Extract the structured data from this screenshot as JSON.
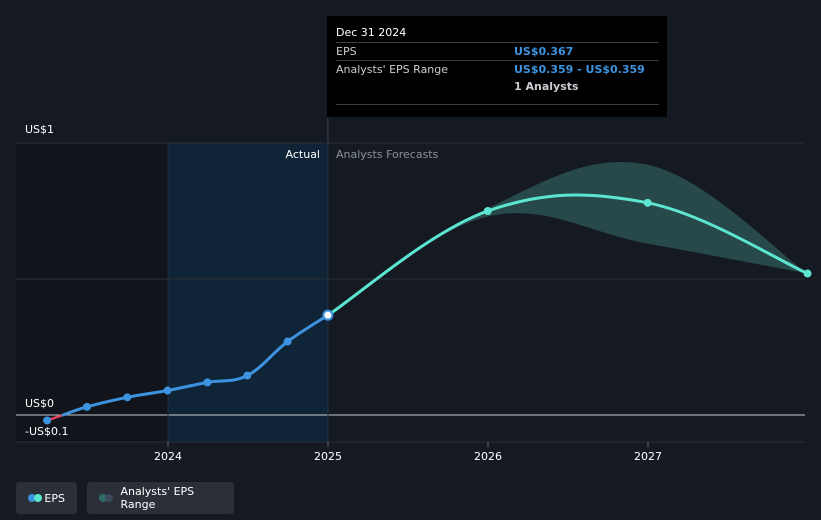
{
  "chart_data": {
    "type": "line",
    "x_ticks": [
      "2024",
      "2025",
      "2026",
      "2027"
    ],
    "y_ticks": [
      "US$1",
      "US$0",
      "-US$0.1"
    ],
    "sections": {
      "actual": "Actual",
      "forecast": "Analysts Forecasts"
    },
    "series": [
      {
        "name": "EPS",
        "kind": "actual",
        "points": [
          {
            "x": "2023-03-31",
            "y": -0.02
          },
          {
            "x": "2023-06-30",
            "y": 0.03
          },
          {
            "x": "2023-09-30",
            "y": 0.065
          },
          {
            "x": "2023-12-31",
            "y": 0.09
          },
          {
            "x": "2024-03-31",
            "y": 0.12
          },
          {
            "x": "2024-06-30",
            "y": 0.145
          },
          {
            "x": "2024-09-30",
            "y": 0.27
          },
          {
            "x": "2024-12-31",
            "y": 0.367
          }
        ]
      },
      {
        "name": "EPS",
        "kind": "forecast",
        "points": [
          {
            "x": "2024-12-31",
            "y": 0.367
          },
          {
            "x": "2025-12-31",
            "y": 0.75
          },
          {
            "x": "2026-12-31",
            "y": 0.78
          },
          {
            "x": "2027-12-31",
            "y": 0.52
          }
        ]
      },
      {
        "name": "Analysts' EPS Range",
        "kind": "range",
        "points": [
          {
            "x": "2024-12-31",
            "low": 0.359,
            "high": 0.359
          },
          {
            "x": "2025-12-31",
            "low": 0.73,
            "high": 0.76
          },
          {
            "x": "2026-12-31",
            "low": 0.63,
            "high": 0.92
          },
          {
            "x": "2027-12-31",
            "low": 0.52,
            "high": 0.52
          }
        ]
      }
    ],
    "ylim": [
      -0.1,
      1.0
    ],
    "grid": true,
    "legend_position": "bottom-left"
  },
  "tooltip": {
    "date": "Dec 31 2024",
    "rows": [
      {
        "label": "EPS",
        "value": "US$0.367"
      },
      {
        "label": "Analysts' EPS Range",
        "value": "US$0.359 - US$0.359"
      },
      {
        "label": "",
        "value": "1 Analysts"
      }
    ]
  },
  "legend": {
    "items": [
      {
        "label": "EPS",
        "colors": [
          "#3d93e0",
          "#5ce6d1"
        ]
      },
      {
        "label": "Analysts' EPS Range",
        "colors": [
          "#2e6d66",
          "#3a4a5a"
        ]
      }
    ]
  },
  "colors": {
    "background": "#151a22",
    "past_shade": "#11151b",
    "actual_highlight": "#10263a",
    "eps_actual": "#3d93e0",
    "eps_forecast": "#5ce6d1",
    "range_fill": "#2d5a57",
    "negative": "#e0455a",
    "grid": "#2a2f38",
    "zero_line": "#c8ccd2"
  }
}
